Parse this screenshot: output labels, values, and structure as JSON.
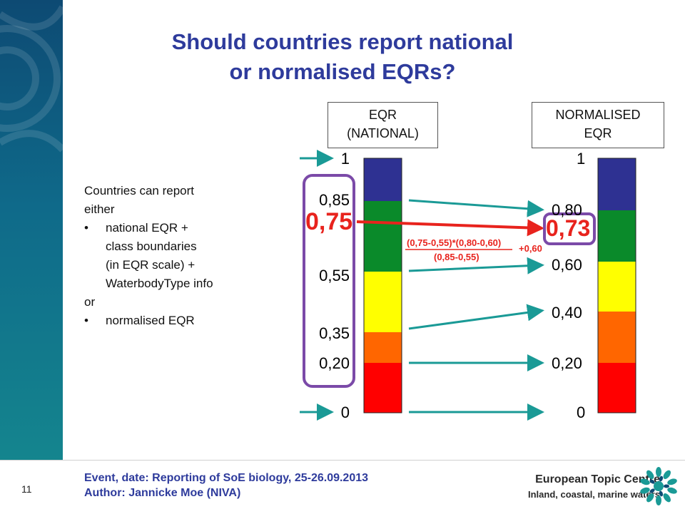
{
  "title": {
    "line1": "Should countries report national",
    "line2": "or normalised EQRs?"
  },
  "boxes": {
    "national": {
      "line1": "EQR",
      "line2": "(NATIONAL)"
    },
    "normalised": {
      "line1": "NORMALISED",
      "line2": "EQR"
    }
  },
  "text_block": {
    "intro1": "Countries can report",
    "intro2": "either",
    "bullet1_line1": "national EQR +",
    "bullet1_line2": "class boundaries",
    "bullet1_line3": "(in EQR scale) +",
    "bullet1_line4": "WaterbodyType info",
    "or": "or",
    "bullet2": "normalised EQR",
    "bullet_char": "•"
  },
  "national_scale": {
    "labels": [
      "1",
      "0,85",
      "0,55",
      "0,35",
      "0,20",
      "0"
    ],
    "value": "0,75"
  },
  "normalised_scale": {
    "labels": [
      "1",
      "0,80",
      "0,60",
      "0,40",
      "0,20",
      "0"
    ],
    "value": "0,73"
  },
  "formula": {
    "numerator": "(0,75-0,55)*(0,80-0,60)",
    "denominator": "(0,85-0,55)",
    "addend": "+0,60"
  },
  "class_colors": {
    "high": "#2e3192",
    "good": "#0a8a2a",
    "moderate": "#ffff00",
    "poor": "#ff6600",
    "bad": "#ff0000"
  },
  "accent_colors": {
    "title": "#2e3b9c",
    "arrow": "#1a9a96",
    "highlight": "#e8231d",
    "frame": "#7b4aa8"
  },
  "footer": {
    "event": "Event, date: Reporting of SoE biology, 25-26.09.2013",
    "author": "Author: Jannicke Moe (NIVA)",
    "page": "11",
    "org_line1": "European Topic Centre",
    "org_line2": "Inland, coastal, marine waters",
    "logo_icon": "etc-logo-icon"
  }
}
